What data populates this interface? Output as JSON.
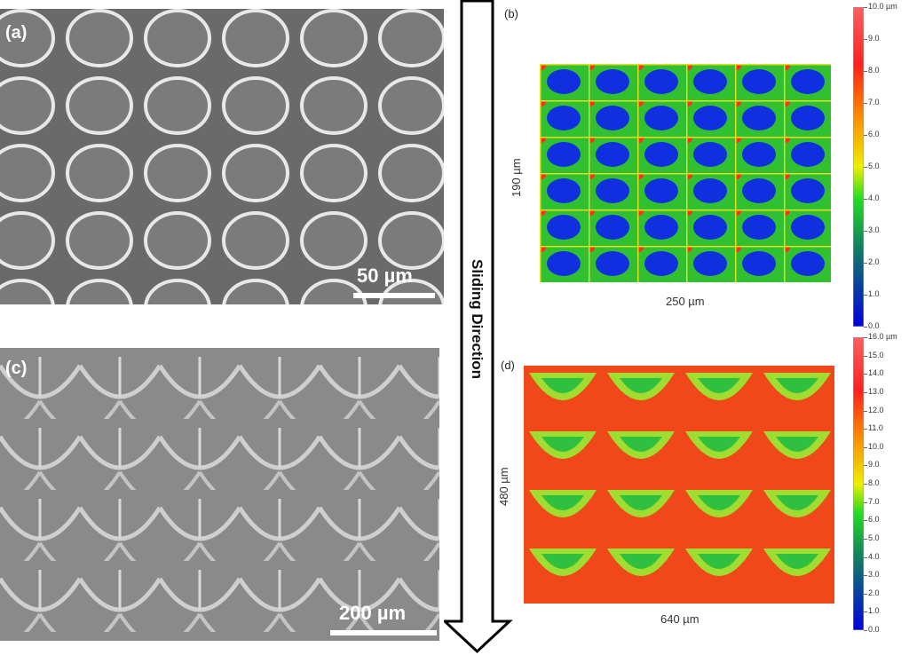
{
  "panels": {
    "a": {
      "label": "(a)",
      "scale": "50 µm"
    },
    "b": {
      "label": "(b)",
      "ylabel": "190 µm",
      "xlabel": "250 µm",
      "colorbar": [
        "10.0 µm",
        "9.0",
        "8.0",
        "7.0",
        "6.0",
        "5.0",
        "4.0",
        "3.0",
        "2.0",
        "1.0",
        "0.0"
      ]
    },
    "c": {
      "label": "(c)",
      "scale": "200 µm"
    },
    "d": {
      "label": "(d)",
      "ylabel": "480 µm",
      "xlabel": "640 µm",
      "colorbar": [
        "16.0 µm",
        "15.0",
        "14.0",
        "13.0",
        "12.0",
        "11.0",
        "10.0",
        "9.0",
        "8.0",
        "7.0",
        "6.0",
        "5.0",
        "4.0",
        "3.0",
        "2.0",
        "1.0",
        "0.0"
      ]
    }
  },
  "arrow": {
    "label": "Sliding Direction",
    "icon": "arrow-down-icon"
  },
  "colors": {
    "low": "#0000e0",
    "mid": "#22dd22",
    "high": "#ff2020"
  }
}
